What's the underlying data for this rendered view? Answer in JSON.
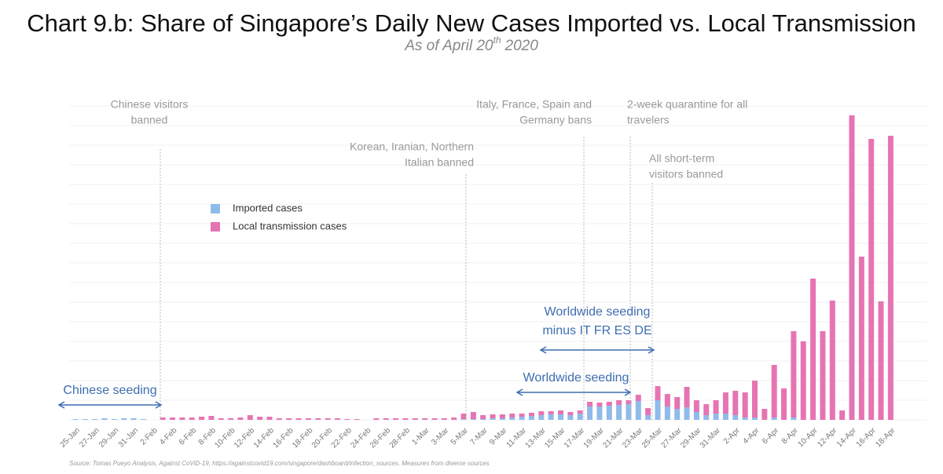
{
  "chart_data": {
    "type": "stacked_bar",
    "title": "Chart 9.b: Share of Singapore’s Daily New Cases Imported vs. Local Transmission",
    "subtitle": [
      "As of April 20",
      "th",
      "2020"
    ],
    "source": "Source: Tomas Pueyo Analysis, Against CoViD-19, https://againstcovid19.com/singapore/dashboard/infection_sources. Measures from diverse sources",
    "categories": [
      "25-Jan",
      null,
      "27-Jan",
      null,
      "29-Jan",
      null,
      "31-Jan",
      null,
      "2-Feb",
      null,
      "4-Feb",
      null,
      "6-Feb",
      null,
      "8-Feb",
      null,
      "10-Feb",
      null,
      "12-Feb",
      null,
      "14-Feb",
      null,
      "16-Feb",
      null,
      "18-Feb",
      null,
      "20-Feb",
      null,
      "22-Feb",
      null,
      "24-Feb",
      null,
      "26-Feb",
      null,
      "28-Feb",
      null,
      "1-Mar",
      null,
      "3-Mar",
      null,
      "5-Mar",
      null,
      "7-Mar",
      null,
      "9-Mar",
      null,
      "11-Mar",
      null,
      "13-Mar",
      null,
      "15-Mar",
      null,
      "17-Mar",
      null,
      "19-Mar",
      null,
      "21-Mar",
      null,
      "23-Mar",
      null,
      "25-Mar",
      null,
      "27-Mar",
      null,
      "29-Mar",
      null,
      "31-Mar",
      null,
      "2-Apr",
      null,
      "4-Apr",
      null,
      "6-Apr",
      null,
      "8-Apr",
      null,
      "10-Apr",
      null,
      "12-Apr",
      null,
      "14-Apr",
      null,
      "16-Apr",
      null,
      "18-Apr"
    ],
    "series": [
      {
        "name": "Imported cases",
        "color": "#8fbbea",
        "values": [
          1,
          1,
          1,
          2,
          1,
          2,
          2,
          1,
          0,
          0,
          0,
          0,
          0,
          0,
          0,
          0,
          0,
          0,
          0,
          0,
          0,
          0,
          0,
          0,
          0,
          0,
          0,
          0,
          0,
          0,
          0,
          0,
          0,
          0,
          0,
          0,
          0,
          0,
          0,
          0,
          1,
          1,
          1,
          2,
          2,
          3,
          4,
          5,
          6,
          7,
          7,
          6,
          8,
          17,
          17,
          18,
          19,
          20,
          24,
          6,
          25,
          17,
          14,
          16,
          10,
          6,
          8,
          8,
          6,
          3,
          3,
          0,
          3,
          0,
          3,
          0,
          0,
          0,
          0,
          0,
          0,
          0,
          0,
          0,
          0
        ]
      },
      {
        "name": "Local transmission cases",
        "color": "#e674b3",
        "values": [
          0,
          0,
          0,
          0,
          0,
          0,
          0,
          0,
          0,
          3,
          3,
          3,
          3,
          4,
          5,
          2,
          2,
          3,
          6,
          4,
          4,
          2,
          2,
          2,
          2,
          2,
          2,
          2,
          1,
          1,
          0,
          2,
          2,
          2,
          2,
          2,
          2,
          2,
          2,
          3,
          7,
          9,
          5,
          5,
          5,
          5,
          4,
          4,
          5,
          4,
          5,
          4,
          4,
          6,
          5,
          5,
          6,
          5,
          8,
          9,
          18,
          16,
          15,
          26,
          15,
          14,
          17,
          27,
          31,
          32,
          47,
          14,
          67,
          40,
          110,
          100,
          180,
          113,
          152,
          12,
          388,
          208,
          358,
          151,
          362
        ]
      }
    ],
    "ylim": [
      0,
      400
    ],
    "annotations": [
      {
        "text": [
          "Chinese visitors",
          "banned"
        ]
      },
      {
        "text": [
          "Korean, Iranian, Northern",
          "Italian banned"
        ]
      },
      {
        "text": [
          "Italy, France, Spain and",
          "Germany bans"
        ]
      },
      {
        "text": [
          "2-week quarantine for all",
          "travelers"
        ]
      },
      {
        "text": [
          "All short-term",
          "visitors banned"
        ]
      }
    ],
    "periods": [
      {
        "text": [
          "Chinese seeding"
        ]
      },
      {
        "text": [
          "Worldwide seeding"
        ]
      },
      {
        "text": [
          "Worldwide seeding",
          "minus IT FR ES DE"
        ]
      }
    ]
  }
}
